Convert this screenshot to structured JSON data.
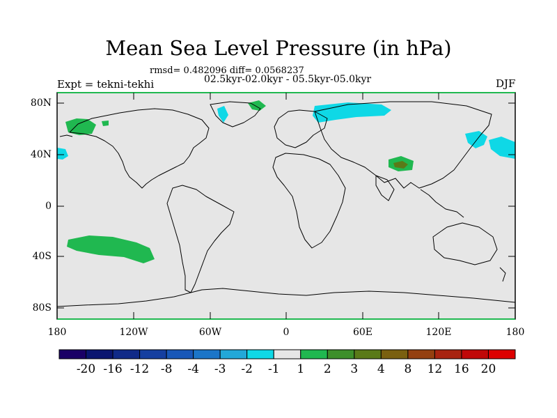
{
  "title": "Mean Sea Level Pressure (in hPa)",
  "stats": "rmsd= 0.482096 diff= 0.0568237",
  "period": "02.5kyr-02.0kyr - 05.5kyr-05.0kyr",
  "experiment": "Expt = tekni-tekhi",
  "season": "DJF",
  "lat_labels": [
    "80N",
    "40N",
    "0",
    "40S",
    "80S"
  ],
  "lon_labels": [
    "180",
    "120W",
    "60W",
    "0",
    "60E",
    "120E",
    "180"
  ],
  "colorbar": {
    "labels": [
      "-20",
      "-16",
      "-12",
      "-8",
      "-4",
      "-3",
      "-2",
      "-1",
      "1",
      "2",
      "3",
      "4",
      "8",
      "12",
      "16",
      "20"
    ],
    "colors": [
      "#1a0066",
      "#0a1570",
      "#102a88",
      "#153fa0",
      "#1857b8",
      "#1b75c8",
      "#22a8d8",
      "#0fd8e6",
      "#e6e6e6",
      "#20b850",
      "#3d8f2a",
      "#5a7a18",
      "#7a6010",
      "#944010",
      "#a82410",
      "#c00808",
      "#dd0000"
    ]
  },
  "colors": {
    "land_background": "#e6e6e6",
    "negative_anomaly": "#0fd8e6",
    "positive_anomaly": "#20b850",
    "strong_positive": "#5a7a18"
  }
}
